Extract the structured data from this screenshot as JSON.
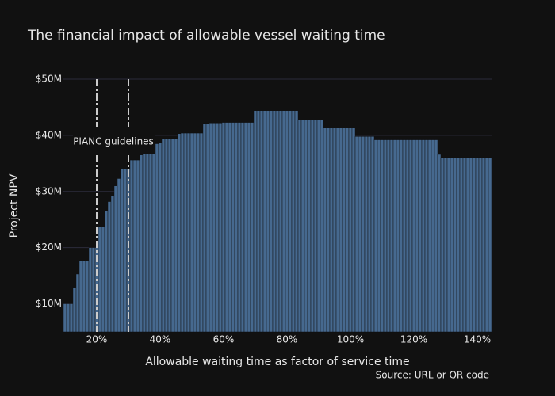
{
  "chart_data": {
    "type": "bar",
    "title": "The financial impact of allowable vessel waiting time",
    "x_label": "Allowable waiting time as factor of service time",
    "y_label": "Project NPV",
    "source": "Source: URL or QR code",
    "annotation": "PIANC guidelines",
    "vlines": [
      20,
      30
    ],
    "color": "#46698f",
    "grid": true,
    "x": [
      10,
      11,
      12,
      13,
      14,
      15,
      16,
      17,
      18,
      19,
      20,
      21,
      22,
      23,
      24,
      25,
      26,
      27,
      28,
      29,
      30,
      31,
      32,
      33,
      34,
      35,
      36,
      37,
      38,
      39,
      40,
      41,
      42,
      43,
      44,
      45,
      46,
      47,
      48,
      49,
      50,
      51,
      52,
      53,
      54,
      55,
      56,
      57,
      58,
      59,
      60,
      61,
      62,
      63,
      64,
      65,
      66,
      67,
      68,
      69,
      70,
      71,
      72,
      73,
      74,
      75,
      76,
      77,
      78,
      79,
      80,
      81,
      82,
      83,
      84,
      85,
      86,
      87,
      88,
      89,
      90,
      91,
      92,
      93,
      94,
      95,
      96,
      97,
      98,
      99,
      100,
      101,
      102,
      103,
      104,
      105,
      106,
      107,
      108,
      109,
      110,
      111,
      112,
      113,
      114,
      115,
      116,
      117,
      118,
      119,
      120,
      121,
      122,
      123,
      124,
      125,
      126,
      127,
      128,
      129,
      130,
      131,
      132,
      133,
      134,
      135,
      136,
      137,
      138,
      139,
      140,
      141,
      142,
      143,
      144
    ],
    "values": [
      10.0,
      10.0,
      10.0,
      12.8,
      15.3,
      17.6,
      17.6,
      17.7,
      20.0,
      20.0,
      20.0,
      23.7,
      23.7,
      26.5,
      28.2,
      29.2,
      31.0,
      32.3,
      34.1,
      34.1,
      34.1,
      35.6,
      35.6,
      35.6,
      36.5,
      37.2,
      37.2,
      37.2,
      38.3,
      38.5,
      38.7,
      39.4,
      39.4,
      39.4,
      39.4,
      39.4,
      40.3,
      40.4,
      40.4,
      40.4,
      40.4,
      40.4,
      40.4,
      40.4,
      42.1,
      42.1,
      42.2,
      42.2,
      42.2,
      42.2,
      42.3,
      42.3,
      42.3,
      42.3,
      42.3,
      42.3,
      42.3,
      42.3,
      42.3,
      42.3,
      44.4,
      44.4,
      44.4,
      44.4,
      44.4,
      44.4,
      44.4,
      44.4,
      44.4,
      44.4,
      44.4,
      44.4,
      44.4,
      44.4,
      42.7,
      42.7,
      42.7,
      42.7,
      42.7,
      42.7,
      42.7,
      42.7,
      41.3,
      41.3,
      41.3,
      41.3,
      41.3,
      41.3,
      41.3,
      41.3,
      41.3,
      41.3,
      39.8,
      39.8,
      39.8,
      39.8,
      39.8,
      39.8,
      39.2,
      39.2,
      39.2,
      39.2,
      39.2,
      39.2,
      39.2,
      39.2,
      39.2,
      39.2,
      39.2,
      39.2,
      39.2,
      39.2,
      39.2,
      39.2,
      39.2,
      39.2,
      39.2,
      39.2,
      36.6,
      36.0,
      36.0,
      36.0,
      36.0,
      36.0,
      36.0,
      36.0,
      36.0,
      36.0,
      36.0,
      36.0,
      36.0,
      36.0,
      36.0,
      36.0,
      36.0
    ],
    "xlim": [
      9.5,
      144.5
    ],
    "ylim": [
      5,
      50
    ],
    "xticks": [
      {
        "value": 20,
        "label": "20%"
      },
      {
        "value": 40,
        "label": "40%"
      },
      {
        "value": 60,
        "label": "60%"
      },
      {
        "value": 80,
        "label": "80%"
      },
      {
        "value": 100,
        "label": "100%"
      },
      {
        "value": 120,
        "label": "120%"
      },
      {
        "value": 140,
        "label": "140%"
      }
    ],
    "yticks": [
      {
        "value": 10,
        "label": "$10M"
      },
      {
        "value": 20,
        "label": "$20M"
      },
      {
        "value": 30,
        "label": "$30M"
      },
      {
        "value": 40,
        "label": "$40M"
      },
      {
        "value": 50,
        "label": "$50M"
      }
    ]
  }
}
